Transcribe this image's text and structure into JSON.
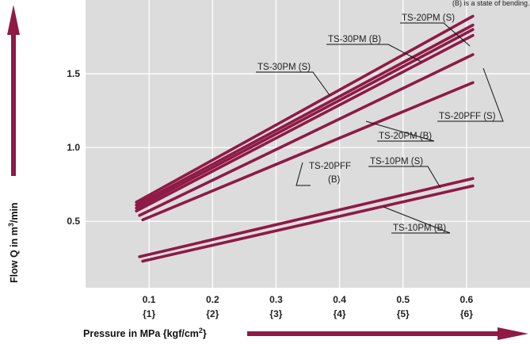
{
  "chart_data": {
    "type": "line",
    "note": "(B) is a state of bending.",
    "xlabel": "Pressure in MPa {kgf/cm",
    "xlabel_sup": "2",
    "xlabel_tail": "}",
    "ylabel": "Flow Q in m",
    "ylabel_sup": "3",
    "ylabel_tail": "/min",
    "xlim": [
      0,
      0.7
    ],
    "ylim": [
      0.05,
      2.0
    ],
    "grid": true,
    "x_ticks": [
      {
        "value": 0.1,
        "label": "0.1",
        "sub": "{1}"
      },
      {
        "value": 0.2,
        "label": "0.2",
        "sub": "{2}"
      },
      {
        "value": 0.3,
        "label": "0.3",
        "sub": "{3}"
      },
      {
        "value": 0.4,
        "label": "0.4",
        "sub": "{4}"
      },
      {
        "value": 0.5,
        "label": "0.5",
        "sub": "{5}"
      },
      {
        "value": 0.6,
        "label": "0.6",
        "sub": "{6}"
      }
    ],
    "y_ticks": [
      {
        "value": 0.5,
        "label": "0.5"
      },
      {
        "value": 1.0,
        "label": "1.0"
      },
      {
        "value": 1.5,
        "label": "1.5"
      }
    ],
    "line_color": "#8e1a45",
    "series": [
      {
        "name": "TS-20PM (S)",
        "x": [
          0.08,
          0.61
        ],
        "y": [
          0.63,
          1.89
        ]
      },
      {
        "name": "TS-30PM (B)",
        "x": [
          0.08,
          0.61
        ],
        "y": [
          0.61,
          1.83
        ]
      },
      {
        "name": "TS-30PM (S)",
        "x": [
          0.08,
          0.61
        ],
        "y": [
          0.59,
          1.8
        ]
      },
      {
        "name": "TS-20PFF (S)",
        "x": [
          0.08,
          0.61
        ],
        "y": [
          0.57,
          1.76
        ]
      },
      {
        "name": "TS-20PM (B)",
        "x": [
          0.085,
          0.61
        ],
        "y": [
          0.54,
          1.63
        ]
      },
      {
        "name": "TS-20PFF (B)",
        "x": [
          0.09,
          0.61
        ],
        "y": [
          0.51,
          1.44
        ]
      },
      {
        "name": "TS-10PM (S)",
        "x": [
          0.085,
          0.61
        ],
        "y": [
          0.26,
          0.79
        ]
      },
      {
        "name": "TS-10PM (B)",
        "x": [
          0.09,
          0.61
        ],
        "y": [
          0.23,
          0.74
        ]
      }
    ],
    "annotations": [
      {
        "text": "TS-20PM (S)"
      },
      {
        "text": "TS-30PM (B)"
      },
      {
        "text": "TS-30PM (S)"
      },
      {
        "text": "TS-20PFF (S)"
      },
      {
        "text": "TS-20PM (B)"
      },
      {
        "text": "TS-20PFF",
        "text2": "(B)"
      },
      {
        "text": "TS-10PM (S)"
      },
      {
        "text": "TS-10PM (B)"
      }
    ]
  }
}
